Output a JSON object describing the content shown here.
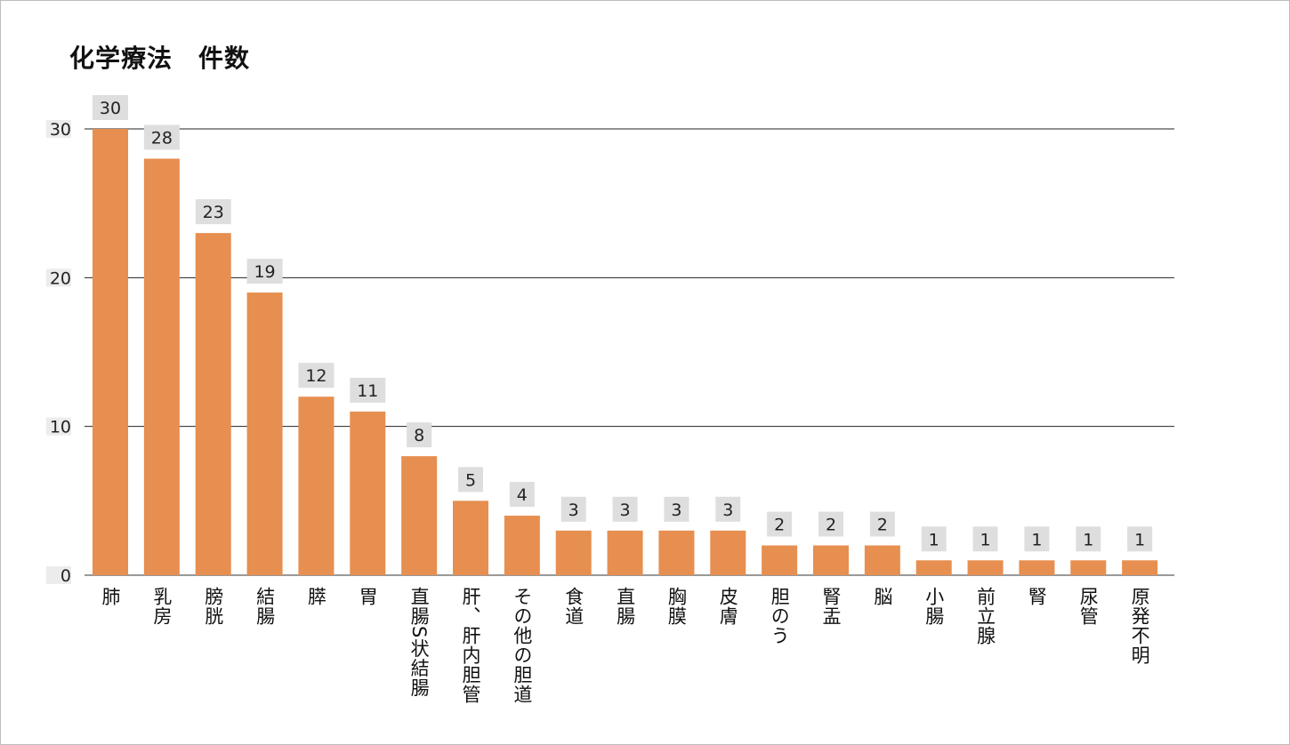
{
  "chart_data": {
    "type": "bar",
    "title": "化学療法　件数",
    "categories": [
      "肺",
      "乳房",
      "膀胱",
      "結腸",
      "膵",
      "胃",
      "直腸S状結腸",
      "肝、肝内胆管",
      "その他の胆道",
      "食道",
      "直腸",
      "胸膜",
      "皮膚",
      "胆のう",
      "腎盂",
      "脳",
      "小腸",
      "前立腺",
      "腎",
      "尿管",
      "原発不明"
    ],
    "values": [
      30,
      28,
      23,
      19,
      12,
      11,
      8,
      5,
      4,
      3,
      3,
      3,
      3,
      2,
      2,
      2,
      1,
      1,
      1,
      1,
      1
    ],
    "ylim": [
      0,
      30
    ],
    "yticks": [
      0,
      10,
      20,
      30
    ],
    "grid": true,
    "data_labels": true,
    "colors": {
      "bar": "#E68F50",
      "label_bg": "#DEDEDE",
      "grid": "#222222"
    }
  }
}
